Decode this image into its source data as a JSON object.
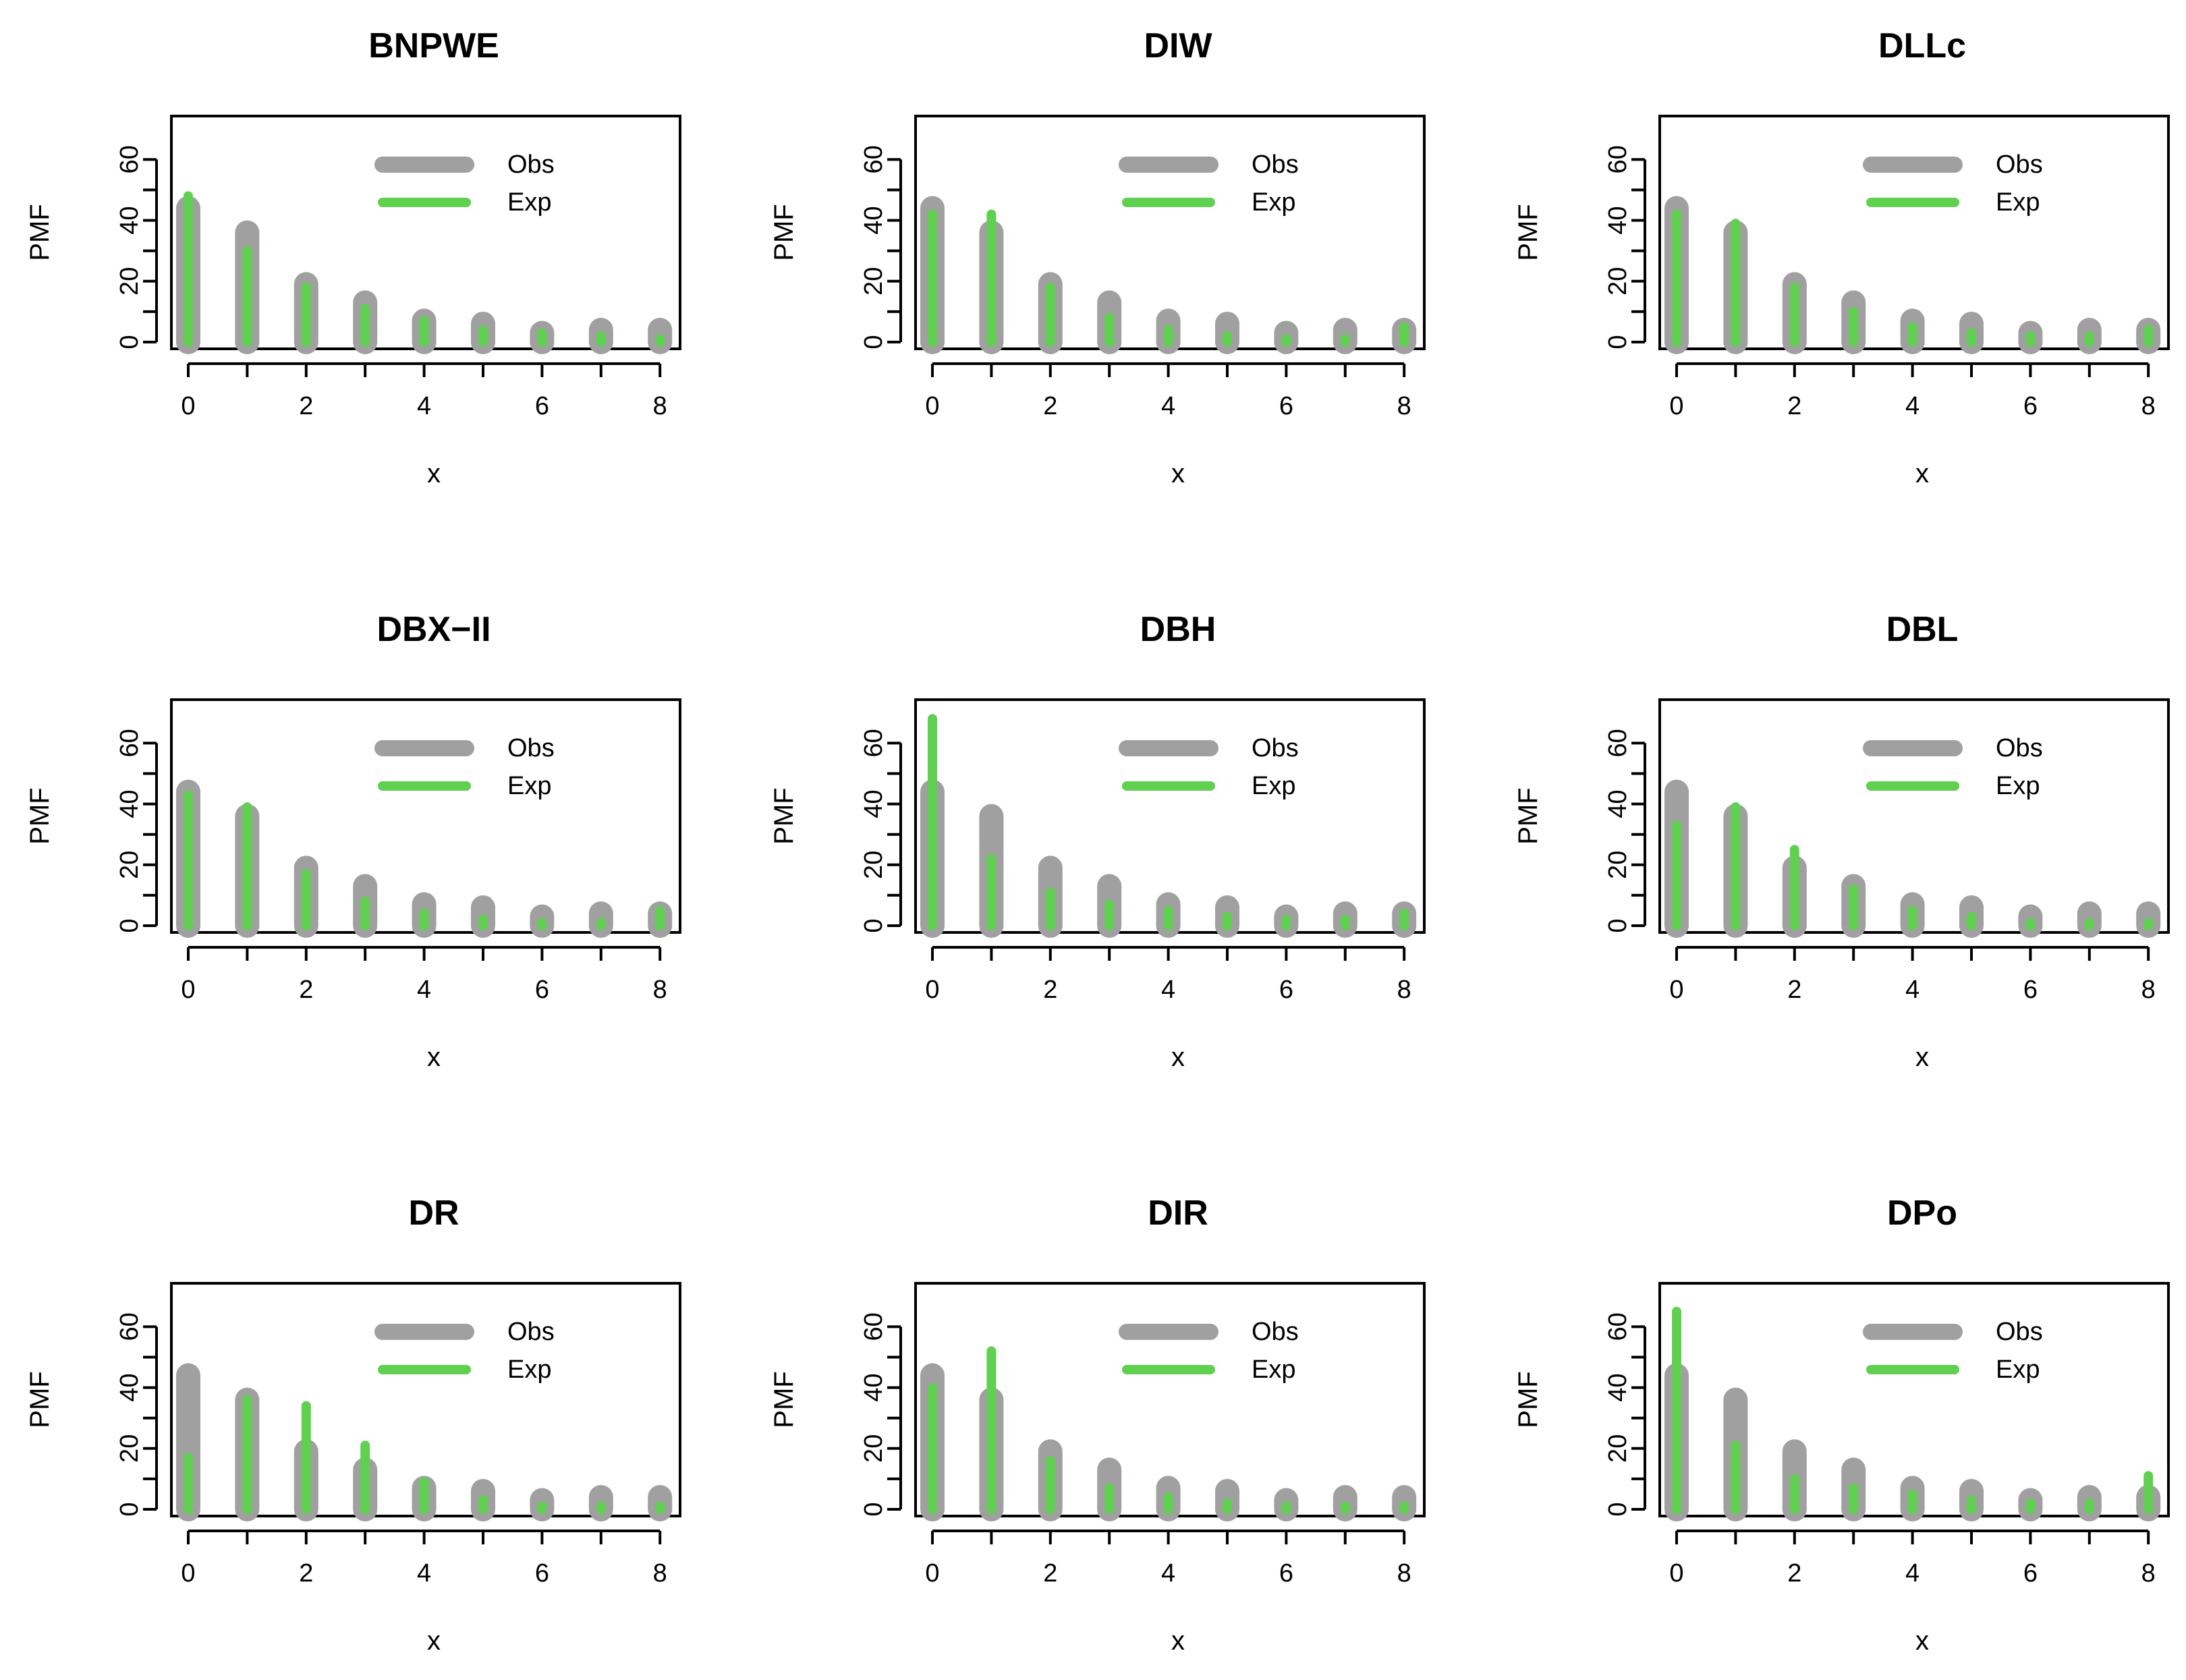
{
  "colors": {
    "obs": "#a0a0a0",
    "exp": "#5fd04f",
    "axis": "#000000"
  },
  "legend": {
    "obs_label": "Obs",
    "exp_label": "Exp",
    "position": "top-right"
  },
  "chart_data": [
    {
      "type": "bar",
      "title": "BNPWE",
      "xlabel": "x",
      "ylabel": "PMF",
      "x": [
        0,
        1,
        2,
        3,
        4,
        5,
        6,
        7,
        8
      ],
      "xticks": [
        0,
        2,
        4,
        6,
        8
      ],
      "yticks": [
        0,
        20,
        40,
        60
      ],
      "ylim": [
        0,
        70
      ],
      "series": [
        {
          "name": "Obs",
          "values": [
            44,
            36,
            19,
            13,
            7,
            6,
            3,
            4,
            4
          ]
        },
        {
          "name": "Exp",
          "values": [
            48,
            30,
            18,
            11,
            7,
            4,
            3,
            2,
            1
          ]
        }
      ]
    },
    {
      "type": "bar",
      "title": "DIW",
      "xlabel": "x",
      "ylabel": "PMF",
      "x": [
        0,
        1,
        2,
        3,
        4,
        5,
        6,
        7,
        8
      ],
      "xticks": [
        0,
        2,
        4,
        6,
        8
      ],
      "yticks": [
        0,
        20,
        40,
        60
      ],
      "ylim": [
        0,
        70
      ],
      "series": [
        {
          "name": "Obs",
          "values": [
            44,
            36,
            19,
            13,
            7,
            6,
            3,
            4,
            4
          ]
        },
        {
          "name": "Exp",
          "values": [
            42,
            42,
            18,
            8,
            4,
            2,
            1,
            1,
            5
          ]
        }
      ]
    },
    {
      "type": "bar",
      "title": "DLLc",
      "xlabel": "x",
      "ylabel": "PMF",
      "x": [
        0,
        1,
        2,
        3,
        4,
        5,
        6,
        7,
        8
      ],
      "xticks": [
        0,
        2,
        4,
        6,
        8
      ],
      "yticks": [
        0,
        20,
        40,
        60
      ],
      "ylim": [
        0,
        70
      ],
      "series": [
        {
          "name": "Obs",
          "values": [
            44,
            36,
            19,
            13,
            7,
            6,
            3,
            4,
            4
          ]
        },
        {
          "name": "Exp",
          "values": [
            42,
            39,
            18,
            10,
            5,
            3,
            2,
            2,
            4
          ]
        }
      ]
    },
    {
      "type": "bar",
      "title": "DBX−II",
      "xlabel": "x",
      "ylabel": "PMF",
      "x": [
        0,
        1,
        2,
        3,
        4,
        5,
        6,
        7,
        8
      ],
      "xticks": [
        0,
        2,
        4,
        6,
        8
      ],
      "yticks": [
        0,
        20,
        40,
        60
      ],
      "ylim": [
        0,
        70
      ],
      "series": [
        {
          "name": "Obs",
          "values": [
            44,
            36,
            19,
            13,
            7,
            6,
            3,
            4,
            4
          ]
        },
        {
          "name": "Exp",
          "values": [
            43,
            39,
            17,
            8,
            4,
            2,
            1,
            1,
            5
          ]
        }
      ]
    },
    {
      "type": "bar",
      "title": "DBH",
      "xlabel": "x",
      "ylabel": "PMF",
      "x": [
        0,
        1,
        2,
        3,
        4,
        5,
        6,
        7,
        8
      ],
      "xticks": [
        0,
        2,
        4,
        6,
        8
      ],
      "yticks": [
        0,
        20,
        40,
        60
      ],
      "ylim": [
        0,
        70
      ],
      "series": [
        {
          "name": "Obs",
          "values": [
            44,
            36,
            19,
            13,
            7,
            6,
            3,
            4,
            4
          ]
        },
        {
          "name": "Exp",
          "values": [
            68,
            22,
            11,
            7,
            5,
            3,
            2,
            2,
            4
          ]
        }
      ]
    },
    {
      "type": "bar",
      "title": "DBL",
      "xlabel": "x",
      "ylabel": "PMF",
      "x": [
        0,
        1,
        2,
        3,
        4,
        5,
        6,
        7,
        8
      ],
      "xticks": [
        0,
        2,
        4,
        6,
        8
      ],
      "yticks": [
        0,
        20,
        40,
        60
      ],
      "ylim": [
        0,
        70
      ],
      "series": [
        {
          "name": "Obs",
          "values": [
            44,
            36,
            19,
            13,
            7,
            6,
            3,
            4,
            4
          ]
        },
        {
          "name": "Exp",
          "values": [
            33,
            39,
            25,
            12,
            5,
            3,
            1,
            1,
            1
          ]
        }
      ]
    },
    {
      "type": "bar",
      "title": "DR",
      "xlabel": "x",
      "ylabel": "PMF",
      "x": [
        0,
        1,
        2,
        3,
        4,
        5,
        6,
        7,
        8
      ],
      "xticks": [
        0,
        2,
        4,
        6,
        8
      ],
      "yticks": [
        0,
        20,
        40,
        60
      ],
      "ylim": [
        0,
        70
      ],
      "series": [
        {
          "name": "Obs",
          "values": [
            44,
            36,
            19,
            13,
            7,
            6,
            3,
            4,
            4
          ]
        },
        {
          "name": "Exp",
          "values": [
            17,
            36,
            34,
            21,
            9,
            3,
            1,
            1,
            1
          ]
        }
      ]
    },
    {
      "type": "bar",
      "title": "DIR",
      "xlabel": "x",
      "ylabel": "PMF",
      "x": [
        0,
        1,
        2,
        3,
        4,
        5,
        6,
        7,
        8
      ],
      "xticks": [
        0,
        2,
        4,
        6,
        8
      ],
      "yticks": [
        0,
        20,
        40,
        60
      ],
      "ylim": [
        0,
        70
      ],
      "series": [
        {
          "name": "Obs",
          "values": [
            44,
            36,
            19,
            13,
            7,
            6,
            3,
            4,
            4
          ]
        },
        {
          "name": "Exp",
          "values": [
            40,
            52,
            16,
            7,
            4,
            2,
            1,
            1,
            1
          ]
        }
      ]
    },
    {
      "type": "bar",
      "title": "DPo",
      "xlabel": "x",
      "ylabel": "PMF",
      "x": [
        0,
        1,
        2,
        3,
        4,
        5,
        6,
        7,
        8
      ],
      "xticks": [
        0,
        2,
        4,
        6,
        8
      ],
      "yticks": [
        0,
        20,
        40,
        60
      ],
      "ylim": [
        0,
        70
      ],
      "series": [
        {
          "name": "Obs",
          "values": [
            44,
            36,
            19,
            13,
            7,
            6,
            3,
            4,
            4
          ]
        },
        {
          "name": "Exp",
          "values": [
            65,
            21,
            10,
            7,
            5,
            3,
            2,
            2,
            11
          ]
        }
      ]
    }
  ]
}
